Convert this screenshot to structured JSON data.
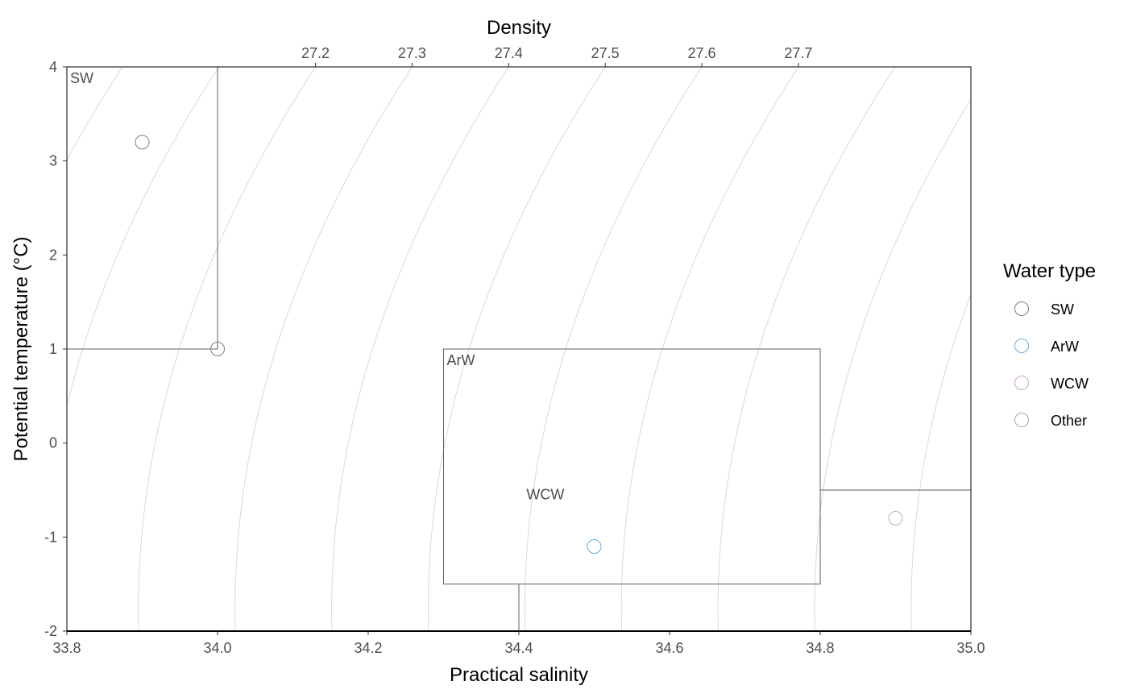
{
  "chart_data": {
    "type": "scatter",
    "title": "",
    "xlabel": "Practical salinity",
    "ylabel": "Potential temperature (°C)",
    "top_axis_label": "Density",
    "xlim": [
      33.8,
      35.0
    ],
    "ylim": [
      -2,
      4
    ],
    "x_ticks": [
      33.8,
      34.0,
      34.2,
      34.4,
      34.6,
      34.8,
      35.0
    ],
    "x_tick_labels": [
      "33.8",
      "34.0",
      "34.2",
      "34.4",
      "34.6",
      "34.8",
      "35.0"
    ],
    "y_ticks": [
      -2,
      -1,
      0,
      1,
      2,
      3,
      4
    ],
    "y_tick_labels": [
      "-2",
      "-1",
      "0",
      "1",
      "2",
      "3",
      "4"
    ],
    "density_ticks": [
      27.2,
      27.3,
      27.4,
      27.5,
      27.6,
      27.7
    ],
    "density_tick_labels": [
      "27.2",
      "27.3",
      "27.4",
      "27.5",
      "27.6",
      "27.7"
    ],
    "grid": false,
    "isopycnals": true,
    "regions": [
      {
        "label": "SW",
        "s_min": 33.8,
        "s_max": 34.0,
        "t_min": 1,
        "t_max": 4
      },
      {
        "label": "ArW",
        "s_min": 34.3,
        "s_max": 34.8,
        "t_min": -1.5,
        "t_max": 1
      },
      {
        "label": "WCW",
        "s_min": 34.4,
        "s_max": 35.0,
        "t_min": -2,
        "t_max": -0.5
      }
    ],
    "points": [
      {
        "x": 33.9,
        "y": 3.2,
        "type": "SW"
      },
      {
        "x": 34.0,
        "y": 1.0,
        "type": "SW"
      },
      {
        "x": 34.5,
        "y": -1.1,
        "type": "ArW"
      },
      {
        "x": 34.9,
        "y": -0.8,
        "type": "WCW"
      }
    ],
    "legend": {
      "title": "Water type",
      "position": "right",
      "entries": [
        {
          "name": "SW",
          "color": "#7f7f7f"
        },
        {
          "name": "ArW",
          "color": "#6baed6"
        },
        {
          "name": "WCW",
          "color": "#c9a7b3"
        },
        {
          "name": "Other",
          "color": "#a6a6a6"
        }
      ]
    },
    "colors": {
      "box": "#5f5f5f",
      "isopycnal": "#d9d9d9",
      "axis": "#000000"
    }
  }
}
